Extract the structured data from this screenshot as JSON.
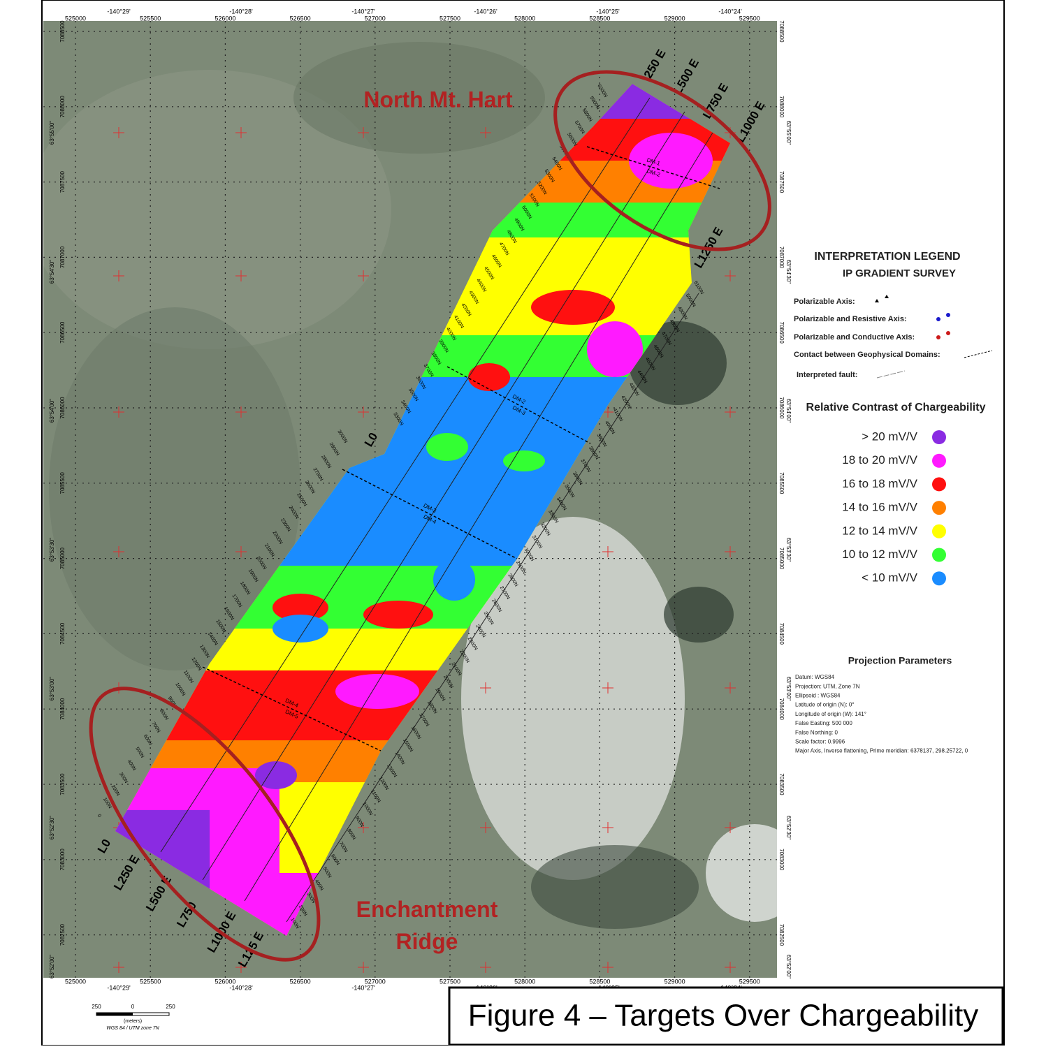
{
  "header": {
    "title": "Figure 4 – Targets Over Chargeability"
  },
  "map": {
    "eastings": [
      "525000",
      "525500",
      "526000",
      "526500",
      "527000",
      "527500",
      "528000",
      "528500",
      "529000",
      "529500"
    ],
    "northings": [
      "7088500",
      "7088000",
      "7087500",
      "7087000",
      "7086500",
      "7086000",
      "7085500",
      "7085000",
      "7084500",
      "7084000",
      "7083500",
      "7083000",
      "7082500"
    ],
    "longitudes": [
      "-140°29'",
      "-140°28'",
      "-140°27'",
      "-140°26'",
      "-140°25'",
      "-140°24'"
    ],
    "latitudes": [
      "63°55'00\"",
      "63°54'30\"",
      "63°54'00\"",
      "63°53'30\"",
      "63°53'00\"",
      "63°52'30\"",
      "63°52'00\""
    ],
    "targets": [
      {
        "label": "North Mt. Hart"
      },
      {
        "label": "Enchantment Ridge"
      }
    ],
    "lines_ne": [
      "250 E",
      "L500 E",
      "L750 E",
      "L1000 E",
      "L1250 E"
    ],
    "lines_sw": [
      "L0",
      "L250 E",
      "L500 E",
      "L750",
      "L1000 E",
      "L125 E"
    ],
    "line_mid": "L0",
    "domains": [
      {
        "upper": "DM-1",
        "lower": "DM-2"
      },
      {
        "upper": "DM-2",
        "lower": "DM-3"
      },
      {
        "upper": "DM-3",
        "lower": "DM-4"
      },
      {
        "upper": "DM-4",
        "lower": "DM-5"
      }
    ],
    "stations_west": [
      "0",
      "100N",
      "200N",
      "300N",
      "400N",
      "500N",
      "600N",
      "700N",
      "800N",
      "900N",
      "1000N",
      "1100N",
      "1200N",
      "1300N",
      "1400N",
      "1500N",
      "1600N",
      "1700N",
      "1800N",
      "1900N",
      "2000N",
      "2100N",
      "2200N",
      "2300N",
      "2400N",
      "2500N",
      "2600N",
      "2700N",
      "2800N",
      "2900N",
      "3000N"
    ],
    "stations_northwest": [
      "3300N",
      "3400N",
      "3500N",
      "3600N",
      "3700N",
      "3800N",
      "3900N",
      "4000N",
      "4100N",
      "4200N",
      "4300N",
      "4400N",
      "4500N",
      "4600N",
      "4700N",
      "4800N",
      "4900N",
      "5000N",
      "5100N",
      "5200N",
      "5300N",
      "5400N",
      "5500N",
      "5600N",
      "5700N",
      "5800N",
      "5900N",
      "6000N"
    ],
    "stations_east": [
      "100N",
      "200N",
      "300N",
      "400N",
      "500N",
      "600N",
      "700N",
      "800N",
      "900N",
      "1000N",
      "1100N",
      "1200N",
      "1300N",
      "1400N",
      "1500N",
      "1600N",
      "1700N",
      "1800N",
      "1900N",
      "2000N",
      "2100N",
      "2200N",
      "2300N",
      "2400N",
      "2500N",
      "2600N",
      "2700N",
      "2800N",
      "2900N",
      "3000N",
      "3100N",
      "3200N",
      "3300N",
      "3400N",
      "3500N",
      "3600N",
      "3700N",
      "3800N",
      "3900N",
      "4000N",
      "4100N",
      "4200N",
      "4300N",
      "4400N",
      "4500N",
      "4600N",
      "4700N",
      "4800N",
      "4900N",
      "5000N",
      "5100N"
    ],
    "scale": {
      "left": "250",
      "mid": "0",
      "right": "250",
      "unit": "(meters)",
      "datum": "WGS 84 / UTM zone 7N"
    }
  },
  "legend": {
    "title": "INTERPRETATION LEGEND",
    "subtitle": "IP GRADIENT SURVEY",
    "symbols": [
      {
        "label": "Polarizable Axis:",
        "color": "#000000"
      },
      {
        "label": "Polarizable and Resistive Axis:",
        "color": "#1a1acc"
      },
      {
        "label": "Polarizable and Conductive Axis:",
        "color": "#cc1a1a"
      },
      {
        "label": "Contact between Geophysical Domains:",
        "color": "#000000"
      },
      {
        "label": "Interpreted fault:",
        "color": "#888888"
      }
    ],
    "scale_title": "Relative Contrast of Chargeability",
    "classes": [
      {
        "label": "> 20 mV/V",
        "color": "#8a2be2"
      },
      {
        "label": "18 to 20 mV/V",
        "color": "#ff1aff"
      },
      {
        "label": "16 to 18 mV/V",
        "color": "#ff1010"
      },
      {
        "label": "14 to 16 mV/V",
        "color": "#ff8000"
      },
      {
        "label": "12 to 14 mV/V",
        "color": "#ffff00"
      },
      {
        "label": "10 to 12 mV/V",
        "color": "#33ff33"
      },
      {
        "label": "< 10 mV/V",
        "color": "#1a8cff"
      }
    ]
  },
  "projection": {
    "title": "Projection Parameters",
    "lines": [
      "Datum: WGS84",
      "Projection: UTM, Zone 7N",
      "Ellipsoid : WGS84",
      "Latitude of origin (N): 0°",
      "Longitude of origin (W): 141°",
      "False Easting: 500 000",
      "False Northing: 0",
      "Scale factor: 0.9996",
      "Major Axis, Inverse flattening, Prime meridian: 6378137, 298.25722, 0"
    ]
  }
}
